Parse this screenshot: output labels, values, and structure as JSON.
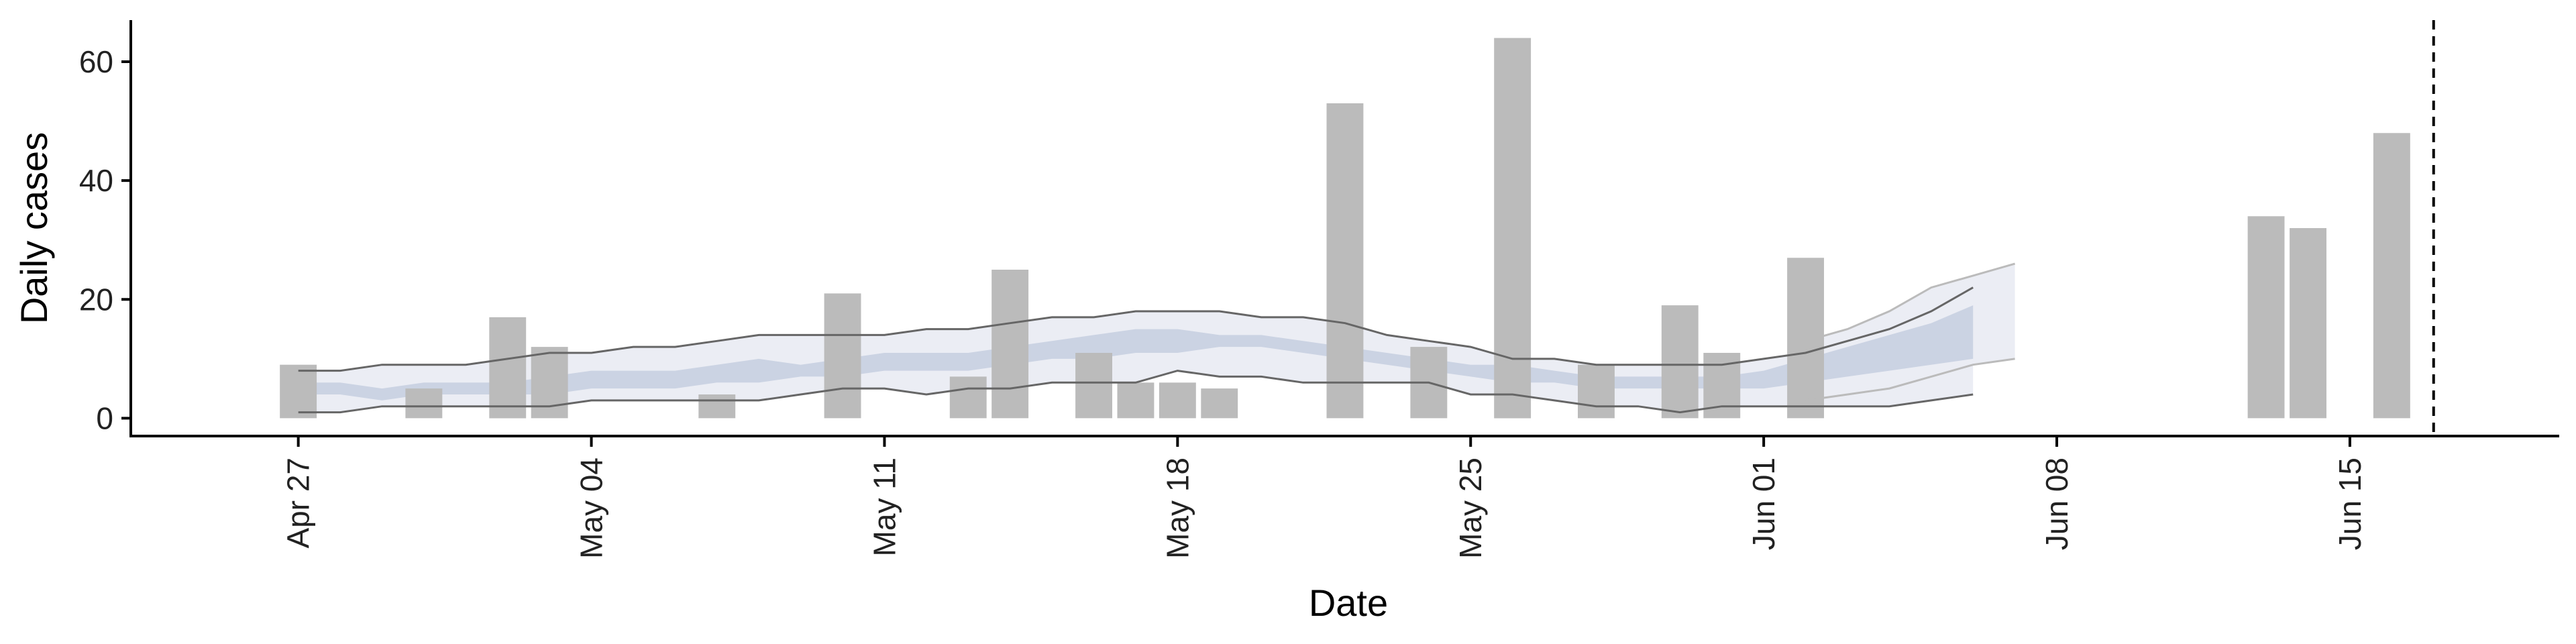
{
  "chart_data": {
    "type": "bar",
    "title": "",
    "xlabel": "Date",
    "ylabel": "Daily cases",
    "ylim": [
      -3,
      67
    ],
    "yticks": [
      0,
      20,
      40,
      60
    ],
    "xlim": [
      "2020-04-23",
      "2020-06-20"
    ],
    "xticks": [
      {
        "date": "2020-04-27",
        "label": "Apr 27"
      },
      {
        "date": "2020-05-04",
        "label": "May 04"
      },
      {
        "date": "2020-05-11",
        "label": "May 11"
      },
      {
        "date": "2020-05-18",
        "label": "May 18"
      },
      {
        "date": "2020-05-25",
        "label": "May 25"
      },
      {
        "date": "2020-06-01",
        "label": "Jun 01"
      },
      {
        "date": "2020-06-08",
        "label": "Jun 08"
      },
      {
        "date": "2020-06-15",
        "label": "Jun 15"
      }
    ],
    "grid": false,
    "legend": "none",
    "vline_date": "2020-06-17",
    "colors": {
      "bars": "#bbbbbb",
      "ribbon_outer": "#ebedf4",
      "ribbon_inner": "#cbd3e3",
      "interval_lines": "#666666",
      "projection_lines": "#bbbbbb",
      "vline": "#000000",
      "axis": "#000000"
    },
    "bars": [
      {
        "date": "2020-04-27",
        "value": 9
      },
      {
        "date": "2020-04-30",
        "value": 5
      },
      {
        "date": "2020-05-02",
        "value": 17
      },
      {
        "date": "2020-05-03",
        "value": 12
      },
      {
        "date": "2020-05-07",
        "value": 4
      },
      {
        "date": "2020-05-10",
        "value": 21
      },
      {
        "date": "2020-05-13",
        "value": 7
      },
      {
        "date": "2020-05-14",
        "value": 25
      },
      {
        "date": "2020-05-16",
        "value": 11
      },
      {
        "date": "2020-05-17",
        "value": 6
      },
      {
        "date": "2020-05-18",
        "value": 6
      },
      {
        "date": "2020-05-19",
        "value": 5
      },
      {
        "date": "2020-05-22",
        "value": 53
      },
      {
        "date": "2020-05-24",
        "value": 12
      },
      {
        "date": "2020-05-26",
        "value": 64
      },
      {
        "date": "2020-05-28",
        "value": 9
      },
      {
        "date": "2020-05-30",
        "value": 19
      },
      {
        "date": "2020-05-31",
        "value": 11
      },
      {
        "date": "2020-06-02",
        "value": 27
      },
      {
        "date": "2020-06-13",
        "value": 34
      },
      {
        "date": "2020-06-14",
        "value": 32
      },
      {
        "date": "2020-06-16",
        "value": 48
      }
    ],
    "estimate": {
      "x": [
        "2020-04-27",
        "2020-04-28",
        "2020-04-29",
        "2020-04-30",
        "2020-05-01",
        "2020-05-02",
        "2020-05-03",
        "2020-05-04",
        "2020-05-05",
        "2020-05-06",
        "2020-05-07",
        "2020-05-08",
        "2020-05-09",
        "2020-05-10",
        "2020-05-11",
        "2020-05-12",
        "2020-05-13",
        "2020-05-14",
        "2020-05-15",
        "2020-05-16",
        "2020-05-17",
        "2020-05-18",
        "2020-05-19",
        "2020-05-20",
        "2020-05-21",
        "2020-05-22",
        "2020-05-23",
        "2020-05-24",
        "2020-05-25",
        "2020-05-26",
        "2020-05-27",
        "2020-05-28",
        "2020-05-29",
        "2020-05-30",
        "2020-05-31",
        "2020-06-01",
        "2020-06-02",
        "2020-06-03",
        "2020-06-04",
        "2020-06-05",
        "2020-06-06"
      ],
      "lower90": [
        1,
        1,
        2,
        2,
        2,
        2,
        2,
        3,
        3,
        3,
        3,
        3,
        4,
        5,
        5,
        4,
        5,
        5,
        6,
        6,
        6,
        8,
        7,
        7,
        6,
        6,
        6,
        6,
        4,
        4,
        3,
        2,
        2,
        1,
        2,
        2,
        2,
        2,
        2,
        3,
        4
      ],
      "upper90": [
        8,
        8,
        9,
        9,
        9,
        10,
        11,
        11,
        12,
        12,
        13,
        14,
        14,
        14,
        14,
        15,
        15,
        16,
        17,
        17,
        18,
        18,
        18,
        17,
        17,
        16,
        14,
        13,
        12,
        10,
        10,
        9,
        9,
        9,
        9,
        10,
        11,
        13,
        15,
        18,
        22
      ],
      "lower50": [
        4,
        4,
        3,
        4,
        4,
        4,
        4,
        5,
        5,
        5,
        6,
        6,
        7,
        7,
        8,
        8,
        8,
        9,
        10,
        10,
        11,
        11,
        12,
        12,
        11,
        10,
        9,
        8,
        7,
        6,
        6,
        5,
        5,
        5,
        5,
        5,
        6,
        7,
        8,
        9,
        10
      ],
      "upper50": [
        6,
        6,
        5,
        6,
        6,
        6,
        7,
        8,
        8,
        8,
        9,
        10,
        9,
        10,
        11,
        11,
        11,
        12,
        13,
        14,
        15,
        15,
        14,
        14,
        13,
        12,
        11,
        10,
        9,
        9,
        8,
        7,
        7,
        7,
        7,
        8,
        10,
        12,
        14,
        16,
        19
      ],
      "projection": {
        "x": [
          "2020-06-02",
          "2020-06-03",
          "2020-06-04",
          "2020-06-05",
          "2020-06-06",
          "2020-06-07"
        ],
        "lower": [
          3,
          4,
          5,
          7,
          9,
          10
        ],
        "upper": [
          13,
          15,
          18,
          22,
          24,
          26
        ]
      }
    }
  }
}
